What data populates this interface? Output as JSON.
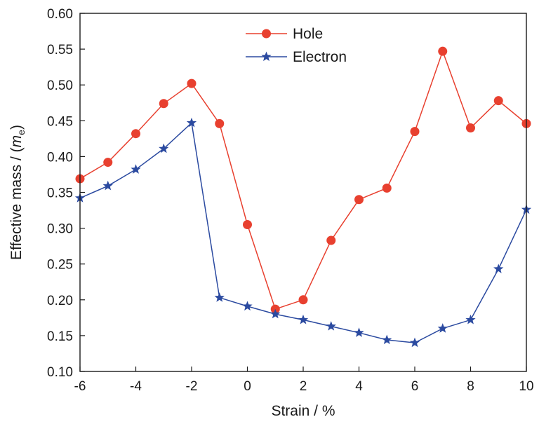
{
  "chart_data": {
    "type": "line",
    "xlabel": "Strain / %",
    "ylabel_parts": {
      "prefix": "Effective mass / (",
      "italic": "m",
      "subscript": "e",
      "suffix": ")"
    },
    "xlim": [
      -6,
      10
    ],
    "ylim": [
      0.1,
      0.6
    ],
    "xticks": [
      "-6",
      "-4",
      "-2",
      "0",
      "2",
      "4",
      "6",
      "8",
      "10"
    ],
    "xtick_values": [
      -6,
      -4,
      -2,
      0,
      2,
      4,
      6,
      8,
      10
    ],
    "yticks": [
      "0.10",
      "0.15",
      "0.20",
      "0.25",
      "0.30",
      "0.35",
      "0.40",
      "0.45",
      "0.50",
      "0.55",
      "0.60"
    ],
    "ytick_values": [
      0.1,
      0.15,
      0.2,
      0.25,
      0.3,
      0.35,
      0.4,
      0.45,
      0.5,
      0.55,
      0.6
    ],
    "legend_position": "top-center",
    "grid": false,
    "x": [
      -6,
      -5,
      -4,
      -3,
      -2,
      -1,
      0,
      1,
      2,
      3,
      4,
      5,
      6,
      7,
      8,
      9,
      10
    ],
    "series": [
      {
        "name": "Hole",
        "color": "#e8402f",
        "marker": "circle",
        "values": [
          0.369,
          0.392,
          0.432,
          0.474,
          0.502,
          0.446,
          0.305,
          0.187,
          0.2,
          0.283,
          0.34,
          0.356,
          0.435,
          0.547,
          0.44,
          0.478,
          0.446
        ]
      },
      {
        "name": "Electron",
        "color": "#2b4aa0",
        "marker": "star",
        "values": [
          0.342,
          0.359,
          0.382,
          0.411,
          0.447,
          0.203,
          0.191,
          0.18,
          0.172,
          0.163,
          0.154,
          0.144,
          0.14,
          0.16,
          0.172,
          0.243,
          0.326
        ]
      }
    ]
  }
}
